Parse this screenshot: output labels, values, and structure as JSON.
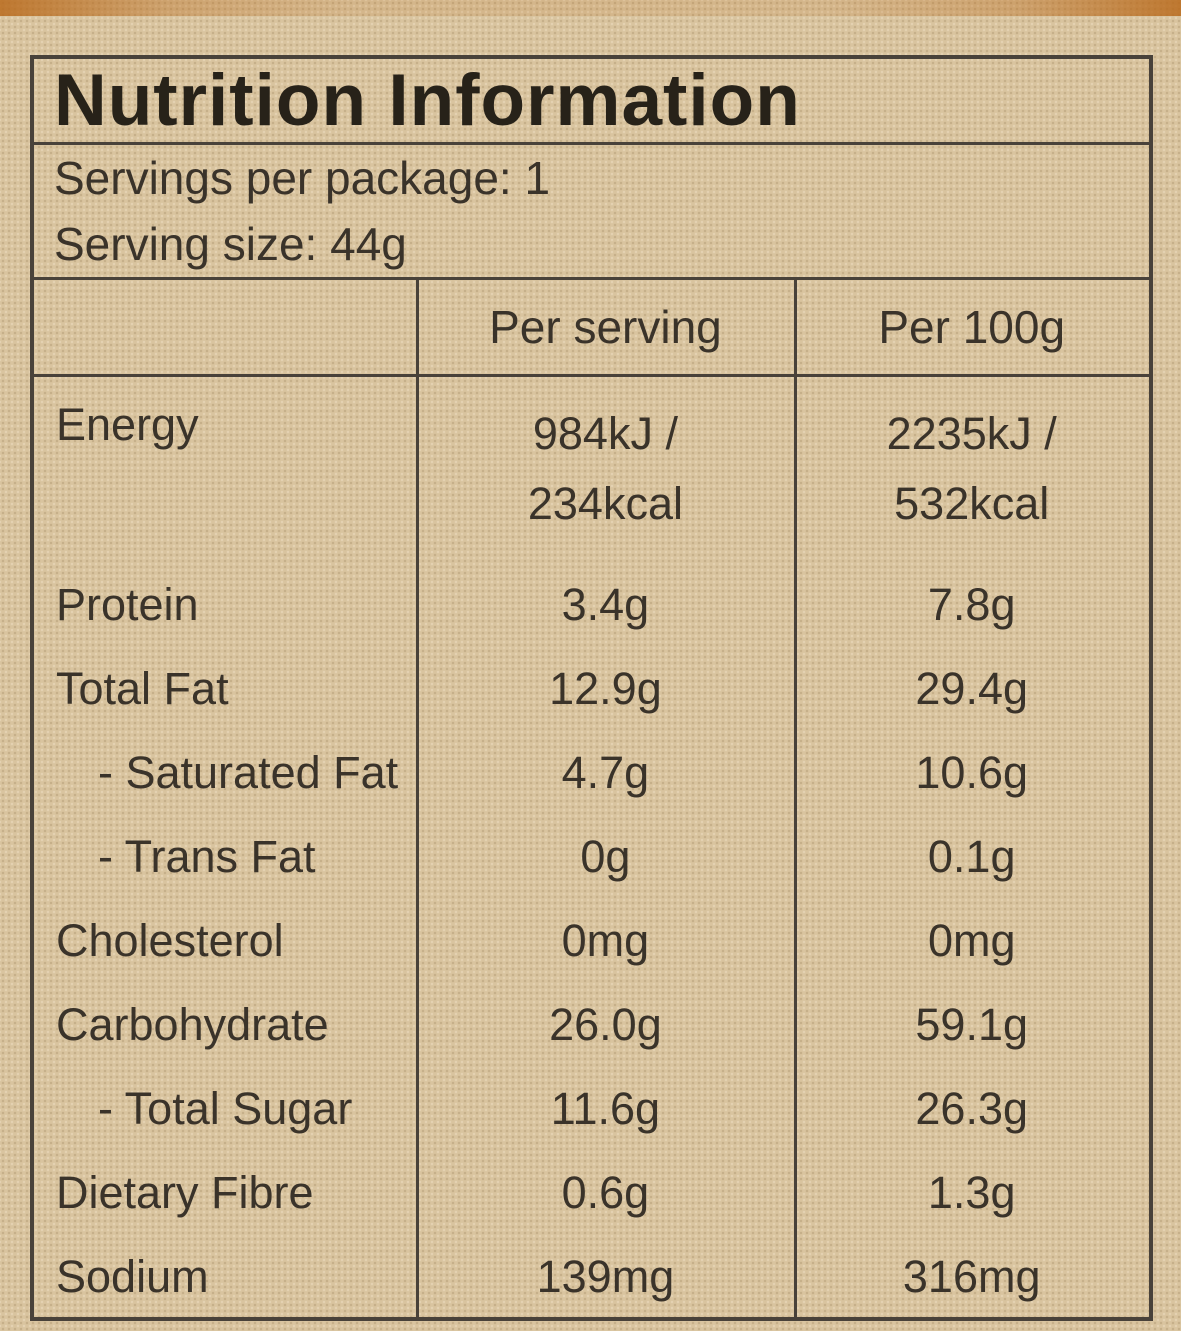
{
  "title": "Nutrition Information",
  "servings_line": "Servings per package: 1",
  "serving_size_line": "Serving size: 44g",
  "table": {
    "column_headers": [
      "",
      "Per serving",
      "Per 100g"
    ],
    "rows": [
      {
        "name": "Energy",
        "per_serving": "984kJ /\n234kcal",
        "per_100g": "2235kJ /\n532kcal"
      },
      {
        "name": "Protein",
        "per_serving": "3.4g",
        "per_100g": "7.8g"
      },
      {
        "name": "Total Fat",
        "per_serving": "12.9g",
        "per_100g": "29.4g"
      },
      {
        "name": "- Saturated Fat",
        "per_serving": "4.7g",
        "per_100g": "10.6g"
      },
      {
        "name": "- Trans Fat",
        "per_serving": "0g",
        "per_100g": "0.1g"
      },
      {
        "name": "Cholesterol",
        "per_serving": "0mg",
        "per_100g": "0mg"
      },
      {
        "name": "Carbohydrate",
        "per_serving": "26.0g",
        "per_100g": "59.1g"
      },
      {
        "name": "- Total Sugar",
        "per_serving": "11.6g",
        "per_100g": "26.3g"
      },
      {
        "name": "Dietary Fibre",
        "per_serving": "0.6g",
        "per_100g": "1.3g"
      },
      {
        "name": "Sodium",
        "per_serving": "139mg",
        "per_100g": "316mg"
      }
    ]
  },
  "colors": {
    "background": "#d9c49f",
    "text": "#3a332a",
    "border": "#49423a",
    "package_edge": "#b96a1c"
  }
}
